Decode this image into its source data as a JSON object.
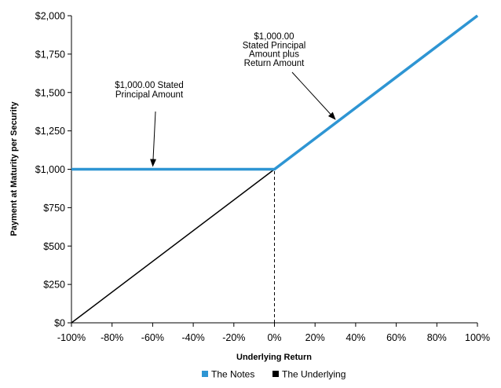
{
  "chart_data": {
    "type": "line",
    "title": "",
    "xlabel": "Underlying Return",
    "ylabel": "Payment at Maturity per Security",
    "xlim": [
      -100,
      100
    ],
    "ylim": [
      0,
      2000
    ],
    "x_ticks": [
      -100,
      -80,
      -60,
      -40,
      -20,
      0,
      20,
      40,
      60,
      80,
      100
    ],
    "x_tick_labels": [
      "-100%",
      "-80%",
      "-60%",
      "-40%",
      "-20%",
      "0%",
      "20%",
      "40%",
      "60%",
      "80%",
      "100%"
    ],
    "y_ticks": [
      0,
      250,
      500,
      750,
      1000,
      1250,
      1500,
      1750,
      2000
    ],
    "y_tick_labels": [
      "$0",
      "$250",
      "$500",
      "$750",
      "$1,000",
      "$1,250",
      "$1,500",
      "$1,750",
      "$2,000"
    ],
    "grid": false,
    "legend_position": "bottom",
    "series": [
      {
        "name": "The Notes",
        "color": "#2e95d3",
        "x": [
          -100,
          0,
          100
        ],
        "y": [
          1000,
          1000,
          2000
        ]
      },
      {
        "name": "The Underlying",
        "color": "#000000",
        "x": [
          -100,
          0,
          100
        ],
        "y": [
          0,
          1000,
          2000
        ]
      }
    ],
    "reference_line": {
      "x": 0,
      "y_from": 0,
      "y_to": 1000,
      "style": "dashed"
    },
    "annotations": [
      {
        "lines": [
          "$1,000.00 Stated",
          "Principal Amount"
        ],
        "point": [
          -60,
          1000
        ]
      },
      {
        "lines": [
          "$1,000.00",
          "Stated Principal",
          "Amount plus",
          "Return Amount"
        ],
        "point": [
          31,
          1310
        ]
      }
    ]
  }
}
